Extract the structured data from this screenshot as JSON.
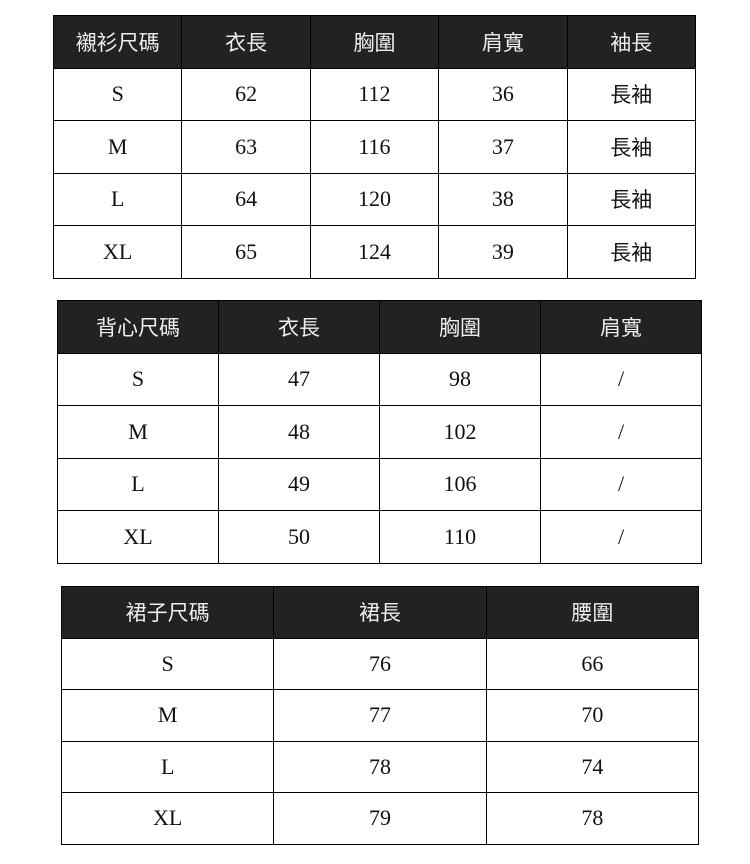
{
  "shirt_table": {
    "headers": [
      "襯衫尺碼",
      "衣長",
      "胸圍",
      "肩寬",
      "袖長"
    ],
    "rows": [
      [
        "S",
        "62",
        "112",
        "36",
        "長袖"
      ],
      [
        "M",
        "63",
        "116",
        "37",
        "長袖"
      ],
      [
        "L",
        "64",
        "120",
        "38",
        "長袖"
      ],
      [
        "XL",
        "65",
        "124",
        "39",
        "長袖"
      ]
    ]
  },
  "vest_table": {
    "headers": [
      "背心尺碼",
      "衣長",
      "胸圍",
      "肩寬"
    ],
    "rows": [
      [
        "S",
        "47",
        "98",
        "/"
      ],
      [
        "M",
        "48",
        "102",
        "/"
      ],
      [
        "L",
        "49",
        "106",
        "/"
      ],
      [
        "XL",
        "50",
        "110",
        "/"
      ]
    ]
  },
  "skirt_table": {
    "headers": [
      "裙子尺碼",
      "裙長",
      "腰圍"
    ],
    "rows": [
      [
        "S",
        "76",
        "66"
      ],
      [
        "M",
        "77",
        "70"
      ],
      [
        "L",
        "78",
        "74"
      ],
      [
        "XL",
        "79",
        "78"
      ]
    ]
  },
  "colors": {
    "header_bg": "#222222",
    "header_text": "#eeeeee",
    "border": "#000000"
  }
}
